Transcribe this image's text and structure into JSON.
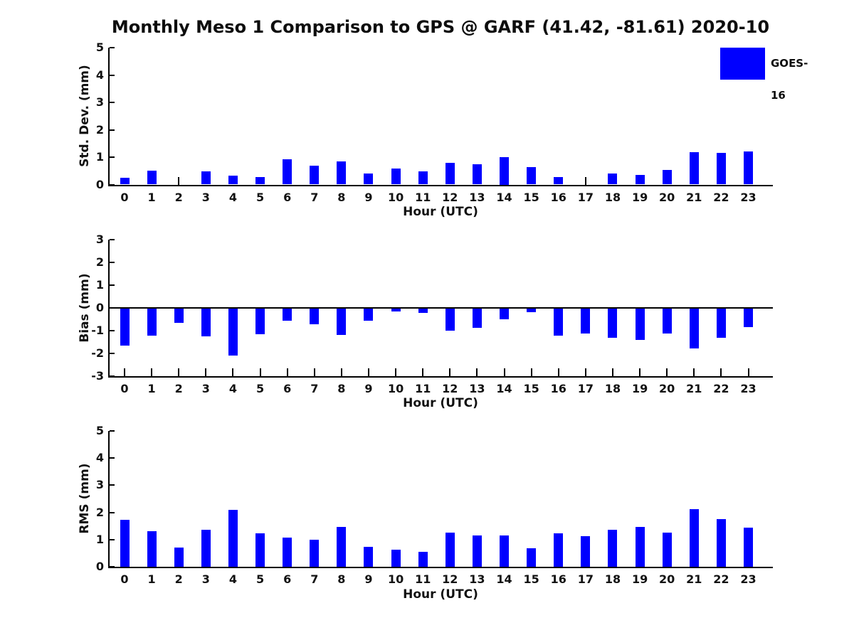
{
  "title": "Monthly Meso 1 Comparison to GPS @ GARF (41.42, -81.61) 2020-10",
  "legend": {
    "label": "GOES-16",
    "color": "#0000ff",
    "position": "top-right"
  },
  "chart_data": [
    {
      "type": "bar",
      "title": "",
      "xlabel": "Hour (UTC)",
      "ylabel": "Std. Dev. (mm)",
      "ylim": [
        0,
        5
      ],
      "yticks": [
        5,
        4,
        3,
        2,
        1,
        0
      ],
      "grid": false,
      "categories": [
        "0",
        "1",
        "2",
        "3",
        "4",
        "5",
        "6",
        "7",
        "8",
        "9",
        "10",
        "11",
        "12",
        "13",
        "14",
        "15",
        "16",
        "17",
        "18",
        "19",
        "20",
        "21",
        "22",
        "23"
      ],
      "series": [
        {
          "name": "GOES-16",
          "color": "#0000ff",
          "values": [
            0.24,
            0.51,
            0.0,
            0.49,
            0.33,
            0.28,
            0.92,
            0.69,
            0.85,
            0.39,
            0.58,
            0.49,
            0.8,
            0.74,
            1.0,
            0.64,
            0.27,
            0.0,
            0.41,
            0.36,
            0.53,
            1.18,
            1.16,
            1.21
          ]
        }
      ]
    },
    {
      "type": "bar",
      "title": "",
      "xlabel": "Hour (UTC)",
      "ylabel": "Bias (mm)",
      "ylim": [
        -3,
        3
      ],
      "yticks": [
        3,
        2,
        1,
        0,
        -1,
        -2,
        -3
      ],
      "grid": false,
      "categories": [
        "0",
        "1",
        "2",
        "3",
        "4",
        "5",
        "6",
        "7",
        "8",
        "9",
        "10",
        "11",
        "12",
        "13",
        "14",
        "15",
        "16",
        "17",
        "18",
        "19",
        "20",
        "21",
        "22",
        "23"
      ],
      "series": [
        {
          "name": "GOES-16",
          "color": "#0000ff",
          "values": [
            -1.66,
            -1.23,
            -0.67,
            -1.25,
            -2.1,
            -1.18,
            -0.57,
            -0.73,
            -1.21,
            -0.58,
            -0.18,
            -0.22,
            -1.01,
            -0.9,
            -0.52,
            -0.21,
            -1.23,
            -1.14,
            -1.32,
            -1.43,
            -1.13,
            -1.79,
            -1.31,
            -0.84
          ]
        }
      ]
    },
    {
      "type": "bar",
      "title": "",
      "xlabel": "Hour (UTC)",
      "ylabel": "RMS (mm)",
      "ylim": [
        0,
        5
      ],
      "yticks": [
        5,
        4,
        3,
        2,
        1,
        0
      ],
      "grid": false,
      "categories": [
        "0",
        "1",
        "2",
        "3",
        "4",
        "5",
        "6",
        "7",
        "8",
        "9",
        "10",
        "11",
        "12",
        "13",
        "14",
        "15",
        "16",
        "17",
        "18",
        "19",
        "20",
        "21",
        "22",
        "23"
      ],
      "series": [
        {
          "name": "GOES-16",
          "color": "#0000ff",
          "values": [
            1.72,
            1.32,
            0.7,
            1.35,
            2.1,
            1.22,
            1.08,
            1.0,
            1.47,
            0.72,
            0.62,
            0.54,
            1.26,
            1.16,
            1.14,
            0.67,
            1.24,
            1.12,
            1.36,
            1.46,
            1.25,
            2.12,
            1.76,
            1.45
          ]
        }
      ]
    }
  ]
}
